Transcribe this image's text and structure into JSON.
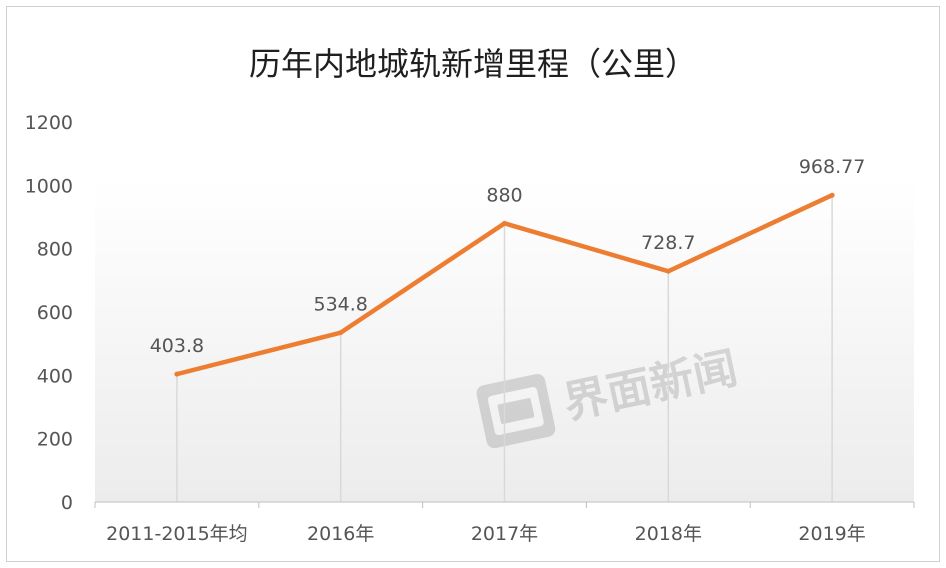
{
  "chart_data": {
    "type": "line",
    "title": "历年内地城轨新增里程（公里）",
    "categories": [
      "2011-2015年均",
      "2016年",
      "2017年",
      "2018年",
      "2019年"
    ],
    "series": [
      {
        "values": [
          403.8,
          534.8,
          880,
          728.7,
          968.77
        ]
      }
    ],
    "data_labels": [
      "403.8",
      "534.8",
      "880",
      "728.7",
      "968.77"
    ],
    "y_ticks": [
      "0",
      "200",
      "400",
      "600",
      "800",
      "1000",
      "1200"
    ],
    "ylim": [
      0,
      1200
    ],
    "xlabel": "",
    "ylabel": "",
    "grid": false,
    "legend": "none",
    "drop_lines": true,
    "line_color": "#ED7D31",
    "drop_line_color": "#d9d9d9",
    "axis_color": "#bfbfbf"
  },
  "watermark": {
    "text": "界面新闻"
  }
}
